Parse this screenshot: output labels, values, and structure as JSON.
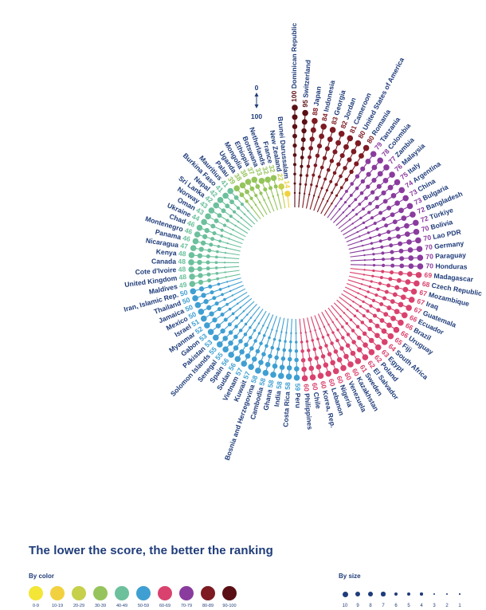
{
  "chart_data": {
    "type": "radial-lollipop",
    "title": "The lower the score, the better the ranking",
    "scale_top": "0",
    "scale_bottom": "100",
    "entries": [
      {
        "country": "Dominican Republic",
        "score": 100
      },
      {
        "country": "Switzerland",
        "score": 95
      },
      {
        "country": "Japan",
        "score": 88
      },
      {
        "country": "Indonesia",
        "score": 84
      },
      {
        "country": "Georgia",
        "score": 83
      },
      {
        "country": "Jordan",
        "score": 82
      },
      {
        "country": "Cameroon",
        "score": 81
      },
      {
        "country": "United States of America",
        "score": 80
      },
      {
        "country": "Romania",
        "score": 80
      },
      {
        "country": "Tanzania",
        "score": 79
      },
      {
        "country": "Colombia",
        "score": 78
      },
      {
        "country": "Zambia",
        "score": 77
      },
      {
        "country": "Malaysia",
        "score": 76
      },
      {
        "country": "Italy",
        "score": 75
      },
      {
        "country": "Argentina",
        "score": 74
      },
      {
        "country": "China",
        "score": 73
      },
      {
        "country": "Bulgaria",
        "score": 73
      },
      {
        "country": "Bangladesh",
        "score": 72
      },
      {
        "country": "Türkiye",
        "score": 72
      },
      {
        "country": "Bolivia",
        "score": 70
      },
      {
        "country": "Lao PDR",
        "score": 70
      },
      {
        "country": "Germany",
        "score": 70
      },
      {
        "country": "Paraguay",
        "score": 70
      },
      {
        "country": "Honduras",
        "score": 70
      },
      {
        "country": "Madagascar",
        "score": 69
      },
      {
        "country": "Czech Republic",
        "score": 68
      },
      {
        "country": "Mozambique",
        "score": 67
      },
      {
        "country": "Iraq",
        "score": 67
      },
      {
        "country": "Guatemala",
        "score": 67
      },
      {
        "country": "Ecuador",
        "score": 66
      },
      {
        "country": "Brazil",
        "score": 66
      },
      {
        "country": "Uruguay",
        "score": 66
      },
      {
        "country": "Fiji",
        "score": 65
      },
      {
        "country": "South Africa",
        "score": 64
      },
      {
        "country": "Egypt",
        "score": 63
      },
      {
        "country": "Poland",
        "score": 62
      },
      {
        "country": "El Salvador",
        "score": 62
      },
      {
        "country": "Sweden",
        "score": 61
      },
      {
        "country": "Kazakhstan",
        "score": 60
      },
      {
        "country": "Venezuela",
        "score": 60
      },
      {
        "country": "Nigeria",
        "score": 60
      },
      {
        "country": "Lebanon",
        "score": 60
      },
      {
        "country": "Korea, Rep.",
        "score": 60
      },
      {
        "country": "Chile",
        "score": 60
      },
      {
        "country": "Philippines",
        "score": 60
      },
      {
        "country": "Peru",
        "score": 59
      },
      {
        "country": "Costa Rica",
        "score": 58
      },
      {
        "country": "India",
        "score": 58
      },
      {
        "country": "Ghana",
        "score": 58
      },
      {
        "country": "Cambodia",
        "score": 58
      },
      {
        "country": "Bosnia and Herzegovina",
        "score": 58
      },
      {
        "country": "Kuwait",
        "score": 57
      },
      {
        "country": "Vietnam",
        "score": 57
      },
      {
        "country": "Sudan",
        "score": 56
      },
      {
        "country": "Spain",
        "score": 56
      },
      {
        "country": "Senegal",
        "score": 55
      },
      {
        "country": "Solomon Islands",
        "score": 55
      },
      {
        "country": "Pakistan",
        "score": 53
      },
      {
        "country": "Gabon",
        "score": 53
      },
      {
        "country": "Myanmar",
        "score": 52
      },
      {
        "country": "Israel",
        "score": 51
      },
      {
        "country": "Mexico",
        "score": 50
      },
      {
        "country": "Jamaica",
        "score": 50
      },
      {
        "country": "Thailand",
        "score": 50
      },
      {
        "country": "Iran, Islamic Rep.",
        "score": 50
      },
      {
        "country": "Maldives",
        "score": 49
      },
      {
        "country": "United Kingdom",
        "score": 48
      },
      {
        "country": "Cote d'Ivoire",
        "score": 48
      },
      {
        "country": "Canada",
        "score": 48
      },
      {
        "country": "Kenya",
        "score": 48
      },
      {
        "country": "Nicaragua",
        "score": 47
      },
      {
        "country": "Panama",
        "score": 46
      },
      {
        "country": "Montenegro",
        "score": 46
      },
      {
        "country": "Chad",
        "score": 46
      },
      {
        "country": "Ukraine",
        "score": 44
      },
      {
        "country": "Oman",
        "score": 43
      },
      {
        "country": "Norway",
        "score": 43
      },
      {
        "country": "Sri Lanka",
        "score": 42
      },
      {
        "country": "Nepal",
        "score": 42
      },
      {
        "country": "Burkina Faso",
        "score": 41
      },
      {
        "country": "Mauritius",
        "score": 41
      },
      {
        "country": "Palau",
        "score": 39
      },
      {
        "country": "Uganda",
        "score": 38
      },
      {
        "country": "Mongolia",
        "score": 38
      },
      {
        "country": "Ethiopia",
        "score": 37
      },
      {
        "country": "Botswana",
        "score": 33
      },
      {
        "country": "Netherlands",
        "score": 32
      },
      {
        "country": "France",
        "score": 32
      },
      {
        "country": "New Zealand",
        "score": 22
      },
      {
        "country": "Brunei Darussalam",
        "score": 14
      }
    ]
  },
  "legend": {
    "color_title": "By color",
    "color_bins": [
      {
        "label": "0-9",
        "color": "#f3e636"
      },
      {
        "label": "10-19",
        "color": "#f1d13f"
      },
      {
        "label": "20-29",
        "color": "#c6d04a"
      },
      {
        "label": "30-39",
        "color": "#95c45c"
      },
      {
        "label": "40-49",
        "color": "#6cc09c"
      },
      {
        "label": "50-59",
        "color": "#3f9fd2"
      },
      {
        "label": "60-69",
        "color": "#d9426e"
      },
      {
        "label": "70-79",
        "color": "#8a3b9e"
      },
      {
        "label": "80-89",
        "color": "#7d1a22"
      },
      {
        "label": "90-100",
        "color": "#5a0f14"
      }
    ],
    "size_title": "By size",
    "size_steps": [
      "10",
      "9",
      "8",
      "7",
      "6",
      "5",
      "4",
      "3",
      "2",
      "1"
    ],
    "size_color": "#1f3c7a"
  },
  "colors": {
    "label": "#1f3c7a"
  }
}
